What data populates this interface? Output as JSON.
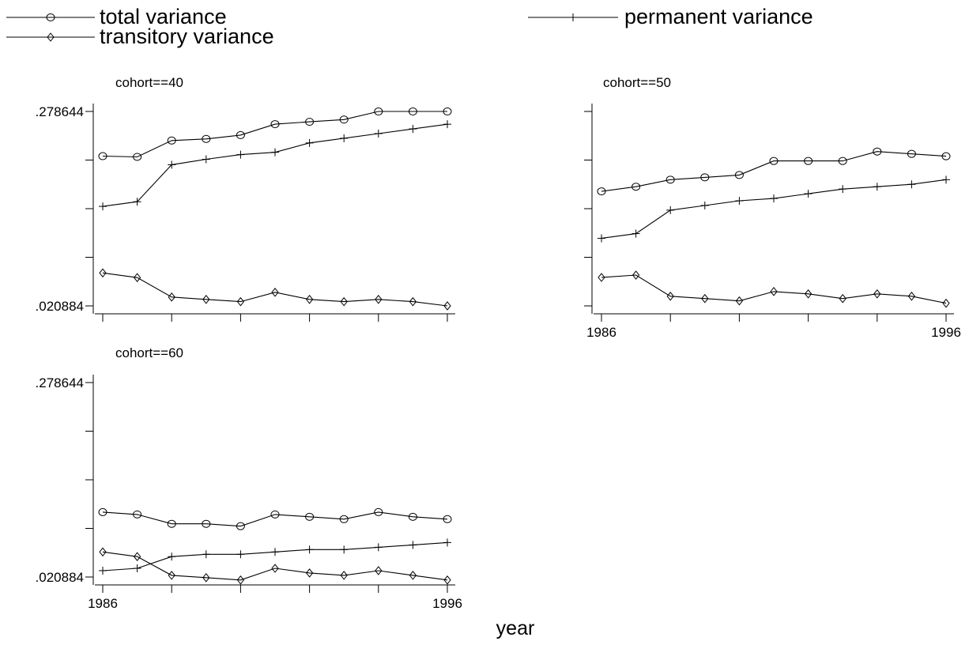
{
  "chart_data": {
    "type": "line",
    "xlabel": "year",
    "x": [
      1986,
      1987,
      1988,
      1989,
      1990,
      1991,
      1992,
      1993,
      1994,
      1995,
      1996
    ],
    "ylim": [
      0.020884,
      0.278644
    ],
    "y_tick_labels": [
      ".278644",
      ".020884"
    ],
    "x_tick_labels": [
      "1986",
      "1996"
    ],
    "grid": false,
    "legend_position": "top",
    "legend": [
      {
        "name": "total variance",
        "marker": "circle"
      },
      {
        "name": "permanent variance",
        "marker": "plus"
      },
      {
        "name": "transitory variance",
        "marker": "diamond"
      }
    ],
    "panels": [
      {
        "title": "cohort==40",
        "show_y_labels": true,
        "show_x_labels": false,
        "series": [
          {
            "name": "total variance",
            "values": [
              0.2194,
              0.2184,
              0.2401,
              0.2422,
              0.2473,
              0.2618,
              0.2649,
              0.2679,
              0.2786,
              0.2786,
              0.2786
            ]
          },
          {
            "name": "permanent variance",
            "values": [
              0.1528,
              0.159,
              0.208,
              0.2152,
              0.2214,
              0.2245,
              0.2369,
              0.2431,
              0.2493,
              0.2555,
              0.2617
            ]
          },
          {
            "name": "transitory variance",
            "values": [
              0.0646,
              0.0584,
              0.0326,
              0.0295,
              0.0265,
              0.0389,
              0.0295,
              0.0265,
              0.0295,
              0.0265,
              0.0209
            ]
          }
        ]
      },
      {
        "title": "cohort==50",
        "show_y_labels": false,
        "show_x_labels": true,
        "series": [
          {
            "name": "total variance",
            "values": [
              0.1727,
              0.1789,
              0.1882,
              0.1913,
              0.1944,
              0.213,
              0.213,
              0.213,
              0.2255,
              0.2224,
              0.2193
            ]
          },
          {
            "name": "permanent variance",
            "values": [
              0.1105,
              0.1167,
              0.1478,
              0.154,
              0.1602,
              0.1633,
              0.1696,
              0.1758,
              0.1789,
              0.182,
              0.1882
            ]
          },
          {
            "name": "transitory variance",
            "values": [
              0.0586,
              0.0617,
              0.0337,
              0.0306,
              0.0275,
              0.0399,
              0.0368,
              0.0306,
              0.0368,
              0.0337,
              0.0244
            ]
          }
        ]
      },
      {
        "title": "cohort==60",
        "show_y_labels": true,
        "show_x_labels": true,
        "series": [
          {
            "name": "total variance",
            "values": [
              0.1069,
              0.1038,
              0.0914,
              0.0914,
              0.0883,
              0.1038,
              0.1007,
              0.0976,
              0.1069,
              0.1007,
              0.0976
            ]
          },
          {
            "name": "permanent variance",
            "values": [
              0.0293,
              0.0324,
              0.0479,
              0.051,
              0.051,
              0.0541,
              0.0572,
              0.0572,
              0.0603,
              0.0634,
              0.0666
            ]
          },
          {
            "name": "transitory variance",
            "values": [
              0.0541,
              0.0479,
              0.0231,
              0.02,
              0.0169,
              0.0324,
              0.0262,
              0.0231,
              0.0293,
              0.0231,
              0.0169
            ]
          }
        ]
      }
    ]
  }
}
